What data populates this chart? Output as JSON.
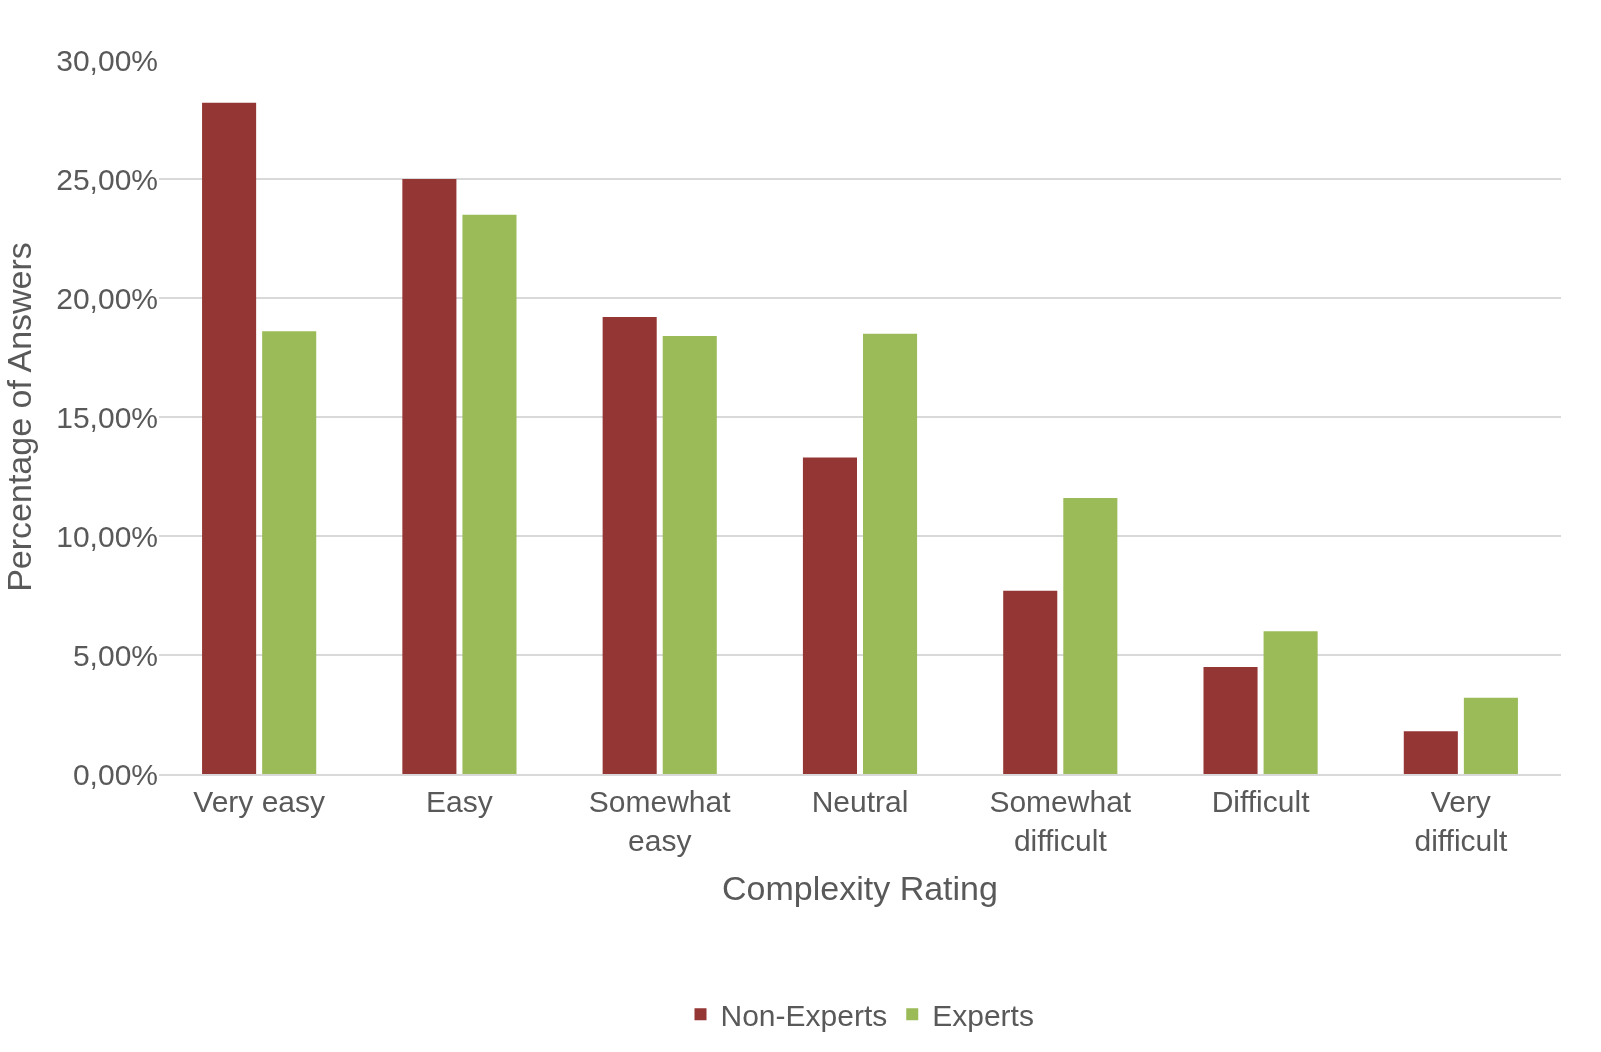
{
  "chart_data": {
    "type": "bar",
    "xlabel": "Complexity Rating",
    "ylabel": "Percentage of Answers",
    "categories": [
      "Very easy",
      "Easy",
      "Somewhat easy",
      "Neutral",
      "Somewhat difficult",
      "Difficult",
      "Very difficult"
    ],
    "series": [
      {
        "name": "Non-Experts",
        "color": "#943634",
        "values": [
          28.2,
          25.0,
          19.2,
          13.3,
          7.7,
          4.5,
          1.8
        ]
      },
      {
        "name": "Experts",
        "color": "#9bbb59",
        "values": [
          18.6,
          23.5,
          18.4,
          18.5,
          11.6,
          6.0,
          3.2
        ]
      }
    ],
    "ylim": [
      0,
      30
    ],
    "yticks": [
      {
        "value": 0,
        "label": "0,00%"
      },
      {
        "value": 5,
        "label": "5,00%"
      },
      {
        "value": 10,
        "label": "10,00%"
      },
      {
        "value": 15,
        "label": "15,00%"
      },
      {
        "value": 20,
        "label": "20,00%"
      },
      {
        "value": 25,
        "label": "25,00%"
      },
      {
        "value": 30,
        "label": "30,00%"
      }
    ],
    "grid": "y",
    "legend": "bottom"
  }
}
